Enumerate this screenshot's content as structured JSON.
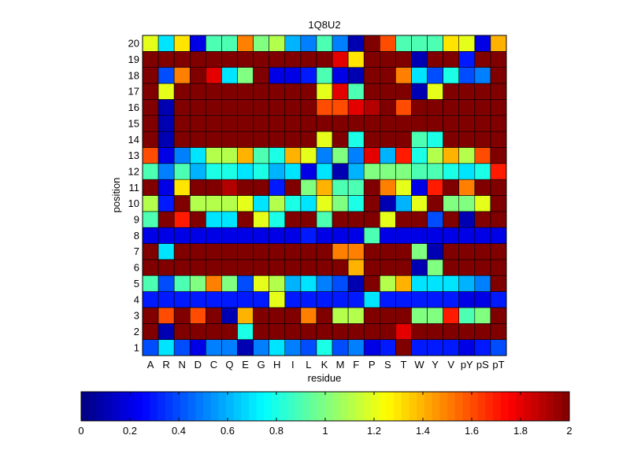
{
  "chart_data": {
    "type": "heatmap",
    "title": "1Q8U2",
    "xlabel": "residue",
    "ylabel": "position",
    "x_categories": [
      "A",
      "R",
      "N",
      "D",
      "C",
      "Q",
      "E",
      "G",
      "H",
      "I",
      "L",
      "K",
      "M",
      "F",
      "P",
      "S",
      "T",
      "W",
      "Y",
      "V",
      "pY",
      "pS",
      "pT"
    ],
    "y_categories": [
      "1",
      "2",
      "3",
      "4",
      "5",
      "6",
      "7",
      "8",
      "9",
      "10",
      "11",
      "12",
      "13",
      "14",
      "15",
      "16",
      "17",
      "18",
      "19",
      "20"
    ],
    "value_range": [
      0,
      2
    ],
    "colormap": "jet",
    "colorbar_ticks": [
      "0",
      "0.2",
      "0.4",
      "0.6",
      "0.8",
      "1",
      "1.2",
      "1.4",
      "1.6",
      "1.8",
      "2"
    ],
    "values_note": "rows ordered from position 1 (bottom) to 20 (top); columns follow x_categories",
    "values": [
      [
        0.4,
        0.7,
        0.4,
        0.2,
        0.5,
        0.5,
        0.1,
        0.5,
        0.7,
        0.5,
        0.4,
        0.8,
        0.4,
        0.5,
        0.2,
        0.3,
        2.0,
        0.3,
        0.3,
        0.3,
        0.2,
        0.3,
        0.4
      ],
      [
        2.0,
        0.1,
        2.0,
        2.0,
        2.0,
        2.0,
        0.8,
        2.0,
        2.0,
        2.0,
        2.0,
        2.0,
        2.0,
        2.0,
        2.0,
        2.0,
        1.8,
        2.0,
        2.0,
        2.0,
        2.0,
        2.0,
        2.0
      ],
      [
        2.0,
        1.6,
        2.0,
        1.6,
        2.0,
        0.1,
        1.4,
        2.0,
        2.0,
        2.0,
        1.5,
        2.0,
        1.1,
        1.1,
        2.0,
        2.0,
        2.0,
        1.0,
        1.0,
        1.7,
        0.9,
        1.0,
        2.0
      ],
      [
        0.3,
        0.3,
        0.3,
        0.3,
        0.3,
        0.3,
        0.3,
        0.3,
        1.2,
        0.3,
        0.3,
        0.3,
        0.3,
        0.3,
        0.7,
        0.3,
        0.3,
        0.3,
        0.3,
        0.3,
        0.2,
        0.2,
        0.3
      ],
      [
        0.9,
        0.4,
        0.9,
        1.0,
        1.5,
        1.0,
        0.4,
        1.2,
        1.1,
        0.6,
        0.7,
        0.5,
        0.4,
        0.1,
        2.0,
        1.1,
        1.4,
        0.7,
        0.7,
        0.7,
        0.6,
        0.5,
        2.0
      ],
      [
        2.0,
        2.0,
        2.0,
        2.0,
        2.0,
        2.0,
        2.0,
        2.0,
        2.0,
        2.0,
        2.0,
        2.0,
        2.0,
        1.4,
        2.0,
        2.0,
        2.0,
        0.1,
        1.0,
        2.0,
        2.0,
        2.0,
        2.0
      ],
      [
        2.0,
        0.7,
        2.0,
        2.0,
        2.0,
        2.0,
        2.0,
        2.0,
        2.0,
        2.0,
        2.0,
        2.0,
        1.5,
        1.5,
        2.0,
        2.0,
        2.0,
        1.0,
        0.1,
        2.0,
        2.0,
        2.0,
        2.0
      ],
      [
        0.2,
        0.2,
        0.2,
        0.2,
        0.2,
        0.2,
        0.2,
        0.2,
        0.2,
        0.2,
        0.3,
        0.2,
        0.2,
        0.2,
        0.9,
        0.2,
        0.2,
        0.2,
        0.2,
        0.2,
        0.2,
        0.2,
        0.2
      ],
      [
        0.9,
        2.0,
        1.7,
        2.0,
        0.7,
        0.7,
        2.0,
        1.2,
        0.8,
        2.0,
        2.0,
        0.9,
        2.0,
        2.0,
        2.0,
        1.2,
        2.0,
        2.0,
        0.4,
        2.0,
        0.1,
        2.0,
        2.0
      ],
      [
        1.1,
        0.3,
        2.0,
        1.1,
        1.1,
        1.1,
        1.2,
        0.7,
        1.1,
        0.8,
        0.7,
        1.2,
        1.0,
        0.8,
        2.0,
        0.1,
        0.6,
        1.2,
        2.0,
        1.0,
        1.0,
        1.2,
        2.0
      ],
      [
        2.0,
        0.2,
        1.3,
        2.0,
        2.0,
        1.9,
        2.0,
        2.0,
        0.3,
        2.0,
        1.0,
        1.4,
        0.9,
        0.9,
        2.0,
        1.5,
        1.2,
        0.2,
        1.7,
        2.0,
        1.5,
        2.0,
        2.0
      ],
      [
        0.9,
        0.5,
        0.9,
        0.6,
        0.8,
        0.8,
        0.7,
        0.8,
        0.6,
        0.7,
        0.2,
        0.7,
        0.1,
        0.6,
        1.0,
        1.0,
        1.0,
        0.9,
        0.9,
        0.8,
        0.7,
        0.8,
        1.7
      ],
      [
        1.6,
        0.2,
        0.5,
        0.7,
        1.1,
        1.1,
        1.4,
        0.9,
        0.8,
        1.4,
        1.2,
        0.5,
        1.0,
        0.5,
        1.8,
        0.6,
        1.7,
        0.8,
        1.1,
        1.4,
        1.1,
        1.6,
        2.0
      ],
      [
        2.0,
        0.1,
        2.0,
        2.0,
        2.0,
        2.0,
        2.0,
        2.0,
        2.0,
        2.0,
        2.0,
        1.2,
        2.0,
        0.8,
        2.0,
        2.0,
        2.0,
        0.9,
        0.8,
        2.0,
        2.0,
        2.0,
        2.0
      ],
      [
        2.0,
        0.1,
        2.0,
        2.0,
        2.0,
        2.0,
        2.0,
        2.0,
        2.0,
        2.0,
        2.0,
        2.0,
        2.0,
        2.0,
        2.0,
        2.0,
        2.0,
        2.0,
        2.0,
        2.0,
        2.0,
        2.0,
        2.0
      ],
      [
        2.0,
        0.1,
        2.0,
        2.0,
        2.0,
        2.0,
        2.0,
        2.0,
        2.0,
        2.0,
        2.0,
        1.6,
        1.6,
        1.8,
        1.9,
        2.0,
        1.6,
        2.0,
        2.0,
        2.0,
        2.0,
        2.0,
        2.0
      ],
      [
        2.0,
        1.2,
        2.0,
        2.0,
        2.0,
        2.0,
        2.0,
        2.0,
        2.0,
        2.0,
        2.0,
        1.2,
        1.8,
        0.9,
        2.0,
        2.0,
        2.0,
        0.1,
        1.2,
        2.0,
        2.0,
        2.0,
        2.0
      ],
      [
        2.0,
        0.4,
        1.5,
        2.0,
        1.8,
        0.7,
        1.0,
        2.0,
        0.2,
        0.2,
        0.3,
        0.9,
        0.2,
        0.1,
        2.0,
        2.0,
        1.5,
        0.7,
        0.4,
        0.8,
        0.4,
        0.5,
        2.0
      ],
      [
        2.0,
        2.0,
        2.0,
        2.0,
        2.0,
        2.0,
        2.0,
        2.0,
        2.0,
        2.0,
        2.0,
        2.0,
        1.8,
        1.3,
        2.0,
        2.0,
        2.0,
        0.1,
        2.0,
        2.0,
        0.3,
        2.0,
        2.0
      ],
      [
        1.2,
        0.7,
        1.3,
        0.2,
        0.9,
        0.9,
        1.5,
        1.0,
        1.1,
        0.6,
        0.5,
        0.9,
        0.5,
        0.1,
        2.0,
        1.6,
        0.9,
        0.9,
        0.9,
        1.3,
        1.2,
        0.2,
        1.4
      ]
    ]
  }
}
